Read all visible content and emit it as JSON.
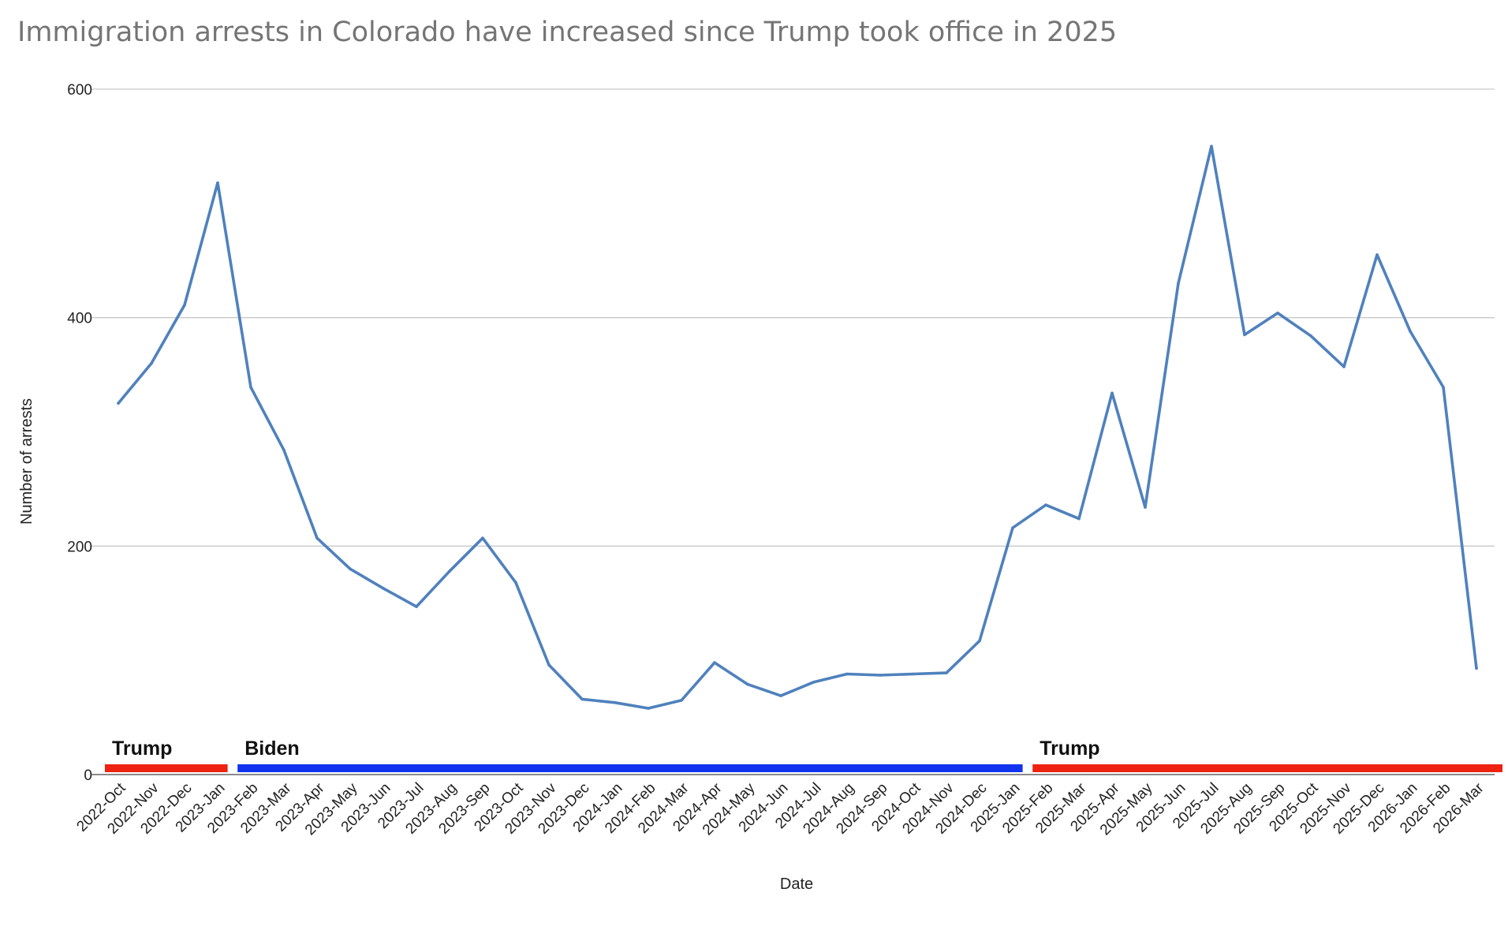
{
  "chart_data": {
    "type": "line",
    "title": "Immigration arrests in Colorado have increased since Trump took office in 2025",
    "xlabel": "Date",
    "ylabel": "Number of arrests",
    "ylim": [
      0,
      600
    ],
    "yticks": [
      0,
      200,
      400,
      600
    ],
    "grid": true,
    "legend": "none",
    "categories": [
      "2022-Oct",
      "2022-Nov",
      "2022-Dec",
      "2023-Jan",
      "2023-Feb",
      "2023-Mar",
      "2023-Apr",
      "2023-May",
      "2023-Jun",
      "2023-Jul",
      "2023-Aug",
      "2023-Sep",
      "2023-Oct",
      "2023-Nov",
      "2023-Dec",
      "2024-Jan",
      "2024-Feb",
      "2024-Mar",
      "2024-Apr",
      "2024-May",
      "2024-Jun",
      "2024-Jul",
      "2024-Aug",
      "2024-Sep",
      "2024-Oct",
      "2024-Nov",
      "2024-Dec",
      "2025-Jan",
      "2025-Feb",
      "2025-Mar",
      "2025-Apr",
      "2025-May",
      "2025-Jun",
      "2025-Jul",
      "2025-Aug",
      "2025-Sep",
      "2025-Oct",
      "2025-Nov",
      "2025-Dec",
      "2026-Jan",
      "2026-Feb",
      "2026-Mar"
    ],
    "series": [
      {
        "values": [
          325,
          360,
          411,
          518,
          339,
          284,
          207,
          180,
          163,
          147,
          178,
          207,
          168,
          96,
          66,
          63,
          58,
          65,
          98,
          79,
          69,
          81,
          88,
          87,
          88,
          89,
          117,
          216,
          236,
          224,
          334,
          234,
          430,
          550,
          385,
          404,
          384,
          357,
          455,
          388,
          339,
          93
        ]
      }
    ],
    "annotations": [
      {
        "label": "Trump",
        "from": "2022-Oct",
        "to": "2023-Jan",
        "color": "#ee2211"
      },
      {
        "label": "Biden",
        "from": "2023-Feb",
        "to": "2025-Jan",
        "color": "#1133ee"
      },
      {
        "label": "Trump",
        "from": "2025-Feb",
        "to": "2026-Mar",
        "color": "#ee2211"
      }
    ],
    "colors": {
      "line": "#4f81bd",
      "gridline": "#c9c9c9",
      "title": "#757575"
    }
  }
}
